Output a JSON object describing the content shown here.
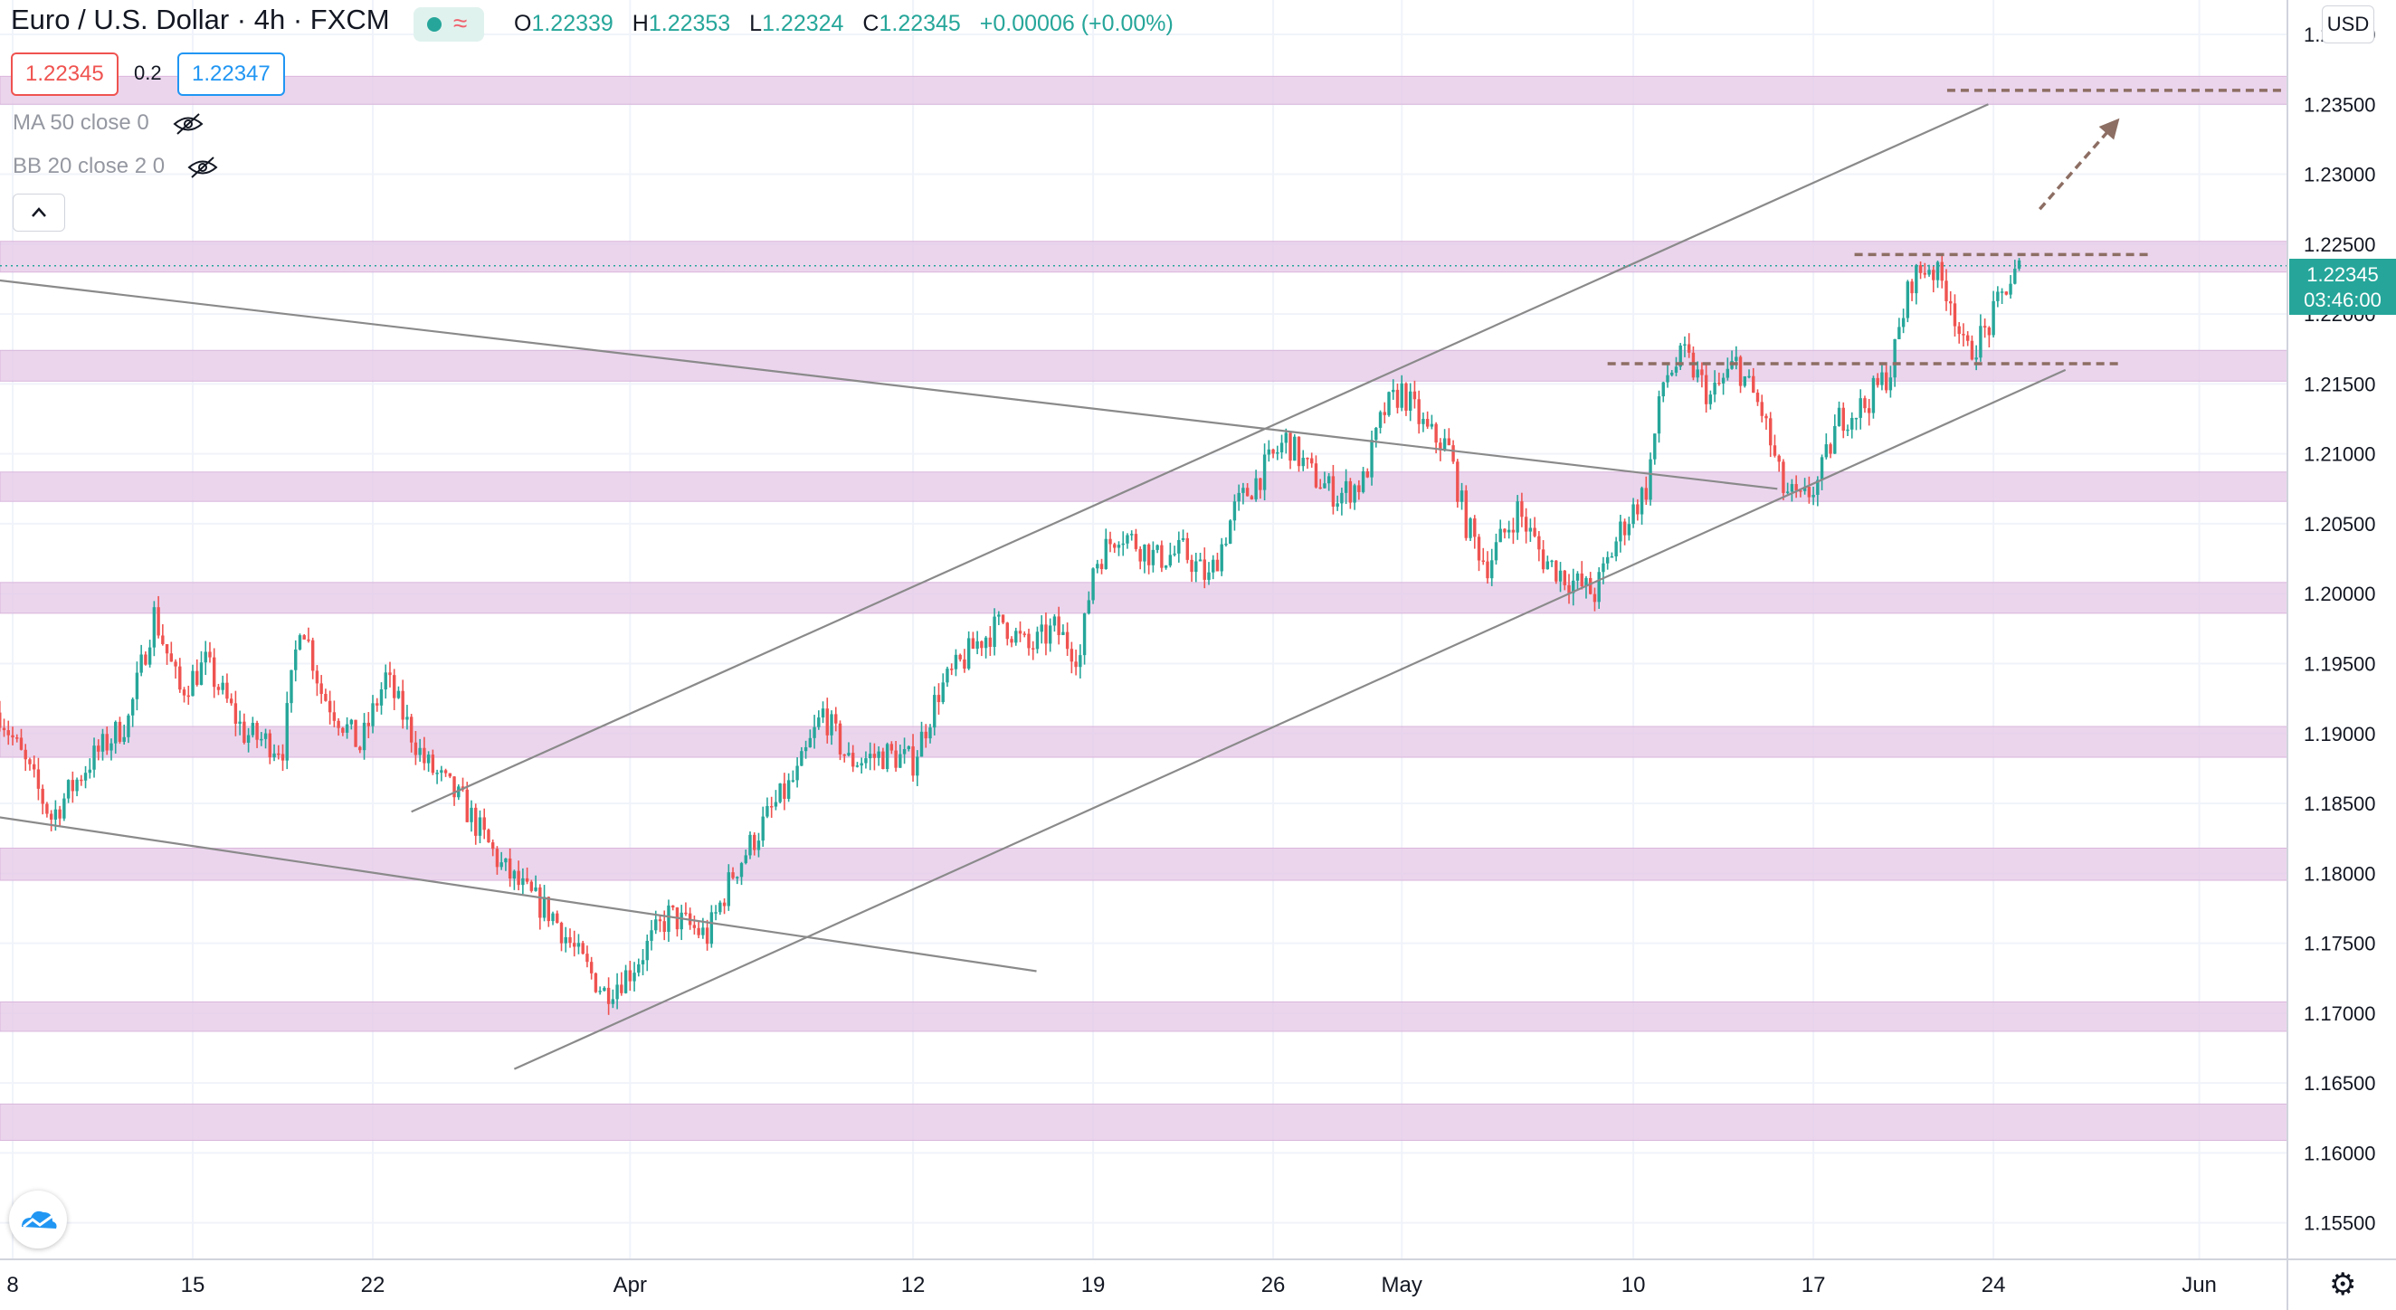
{
  "header": {
    "symbol": "Euro / U.S. Dollar · 4h · FXCM",
    "ohlc": [
      {
        "k": "O",
        "v": "1.22339"
      },
      {
        "k": "H",
        "v": "1.22353"
      },
      {
        "k": "L",
        "v": "1.22324"
      },
      {
        "k": "C",
        "v": "1.22345"
      },
      {
        "k": "",
        "v": "+0.00006 (+0.00%)"
      }
    ],
    "bid": "1.22345",
    "ask": "1.22347",
    "spread": "0.2",
    "indicators": [
      "MA 50 close 0",
      "BB 20 close 2 0"
    ],
    "currency": "USD"
  },
  "price_tag": {
    "price": "1.22345",
    "countdown": "03:46:00"
  },
  "colors": {
    "up": "#26a69a",
    "down": "#ef5350",
    "zone": "#e6cbe8",
    "trend": "#8a8a8a",
    "level": "#8d6e63",
    "grid": "#f0f3fa"
  },
  "chart_data": {
    "type": "candlestick",
    "instrument": "EUR/USD",
    "timeframe": "4h",
    "ylim": [
      1.153,
      1.2425
    ],
    "y_ticks": [
      "1.24000",
      "1.23500",
      "1.23000",
      "1.22500",
      "1.22000",
      "1.21500",
      "1.21000",
      "1.20500",
      "1.20000",
      "1.19500",
      "1.19000",
      "1.18500",
      "1.18000",
      "1.17500",
      "1.17000",
      "1.16500",
      "1.16000",
      "1.15500"
    ],
    "x_ticks": [
      {
        "label": "8",
        "day": 0
      },
      {
        "label": "15",
        "day": 7
      },
      {
        "label": "22",
        "day": 14
      },
      {
        "label": "Apr",
        "day": 24
      },
      {
        "label": "12",
        "day": 35
      },
      {
        "label": "19",
        "day": 42
      },
      {
        "label": "26",
        "day": 49
      },
      {
        "label": "May",
        "day": 54
      },
      {
        "label": "10",
        "day": 63
      },
      {
        "label": "17",
        "day": 70
      },
      {
        "label": "24",
        "day": 77
      },
      {
        "label": "Jun",
        "day": 85
      }
    ],
    "x_range_days": [
      -0.5,
      89
    ],
    "price_path": [
      [
        -0.5,
        1.1915
      ],
      [
        1.5,
        1.184
      ],
      [
        3,
        1.188
      ],
      [
        4.5,
        1.191
      ],
      [
        5.5,
        1.1985
      ],
      [
        6.5,
        1.193
      ],
      [
        7.5,
        1.195
      ],
      [
        9,
        1.19
      ],
      [
        10.5,
        1.189
      ],
      [
        11.2,
        1.1985
      ],
      [
        12,
        1.193
      ],
      [
        13.5,
        1.189
      ],
      [
        14.5,
        1.194
      ],
      [
        16,
        1.188
      ],
      [
        17.5,
        1.185
      ],
      [
        19,
        1.1805
      ],
      [
        20,
        1.1785
      ],
      [
        21,
        1.177
      ],
      [
        22,
        1.174
      ],
      [
        23,
        1.1715
      ],
      [
        24,
        1.173
      ],
      [
        25.5,
        1.177
      ],
      [
        27,
        1.1755
      ],
      [
        28,
        1.18
      ],
      [
        29.5,
        1.1845
      ],
      [
        30.5,
        1.187
      ],
      [
        31.5,
        1.1915
      ],
      [
        32.5,
        1.188
      ],
      [
        34,
        1.1885
      ],
      [
        35,
        1.188
      ],
      [
        36,
        1.193
      ],
      [
        37.5,
        1.1965
      ],
      [
        38.5,
        1.198
      ],
      [
        39.5,
        1.196
      ],
      [
        40.5,
        1.1975
      ],
      [
        41.5,
        1.1955
      ],
      [
        42,
        1.202
      ],
      [
        43,
        1.2045
      ],
      [
        44.5,
        1.2025
      ],
      [
        45.5,
        1.203
      ],
      [
        46.5,
        1.201
      ],
      [
        47.5,
        1.206
      ],
      [
        48.5,
        1.2085
      ],
      [
        49.5,
        1.211
      ],
      [
        50.5,
        1.2085
      ],
      [
        51.5,
        1.207
      ],
      [
        52.5,
        1.208
      ],
      [
        53.3,
        1.213
      ],
      [
        54,
        1.2145
      ],
      [
        55,
        1.2115
      ],
      [
        55.8,
        1.2105
      ],
      [
        56.5,
        1.205
      ],
      [
        57.3,
        1.202
      ],
      [
        58.5,
        1.206
      ],
      [
        59.5,
        1.2025
      ],
      [
        60.5,
        1.201
      ],
      [
        61.5,
        1.2
      ],
      [
        62.5,
        1.2045
      ],
      [
        63.5,
        1.2075
      ],
      [
        64.2,
        1.2155
      ],
      [
        65,
        1.217
      ],
      [
        66,
        1.214
      ],
      [
        67,
        1.2165
      ],
      [
        68,
        1.213
      ],
      [
        68.8,
        1.2075
      ],
      [
        69.5,
        1.2065
      ],
      [
        70.2,
        1.208
      ],
      [
        71,
        1.2125
      ],
      [
        72,
        1.2135
      ],
      [
        73,
        1.216
      ],
      [
        73.8,
        1.2225
      ],
      [
        74.5,
        1.2235
      ],
      [
        75.3,
        1.2215
      ],
      [
        75.9,
        1.217
      ],
      [
        76.8,
        1.219
      ],
      [
        77.5,
        1.222
      ],
      [
        78.1,
        1.22345
      ]
    ],
    "zones": [
      [
        1.235,
        1.237
      ],
      [
        1.223,
        1.2252
      ],
      [
        1.2152,
        1.2174
      ],
      [
        1.2066,
        1.2087
      ],
      [
        1.1986,
        1.2008
      ],
      [
        1.1883,
        1.1905
      ],
      [
        1.1795,
        1.1818
      ],
      [
        1.1687,
        1.1708
      ],
      [
        1.1609,
        1.1635
      ]
    ],
    "trendlines": [
      {
        "from": [
          15.5,
          1.1844
        ],
        "to": [
          76.8,
          1.235
        ]
      },
      {
        "from": [
          19.5,
          1.166
        ],
        "to": [
          79.8,
          1.216
        ]
      },
      {
        "from": [
          -0.5,
          1.2224
        ],
        "to": [
          68.6,
          1.2075
        ]
      },
      {
        "from": [
          -0.5,
          1.184
        ],
        "to": [
          39.8,
          1.173
        ]
      }
    ],
    "levels": [
      {
        "day_from": 75.2,
        "day_to": 88.3,
        "price": 1.236
      },
      {
        "day_from": 71.6,
        "day_to": 83.0,
        "price": 1.22425
      },
      {
        "day_from": 62.0,
        "day_to": 82.0,
        "price": 1.21645
      }
    ],
    "projection": {
      "from": [
        78.8,
        1.2275
      ],
      "to": [
        81.9,
        1.234
      ]
    },
    "current_price": 1.22345
  }
}
